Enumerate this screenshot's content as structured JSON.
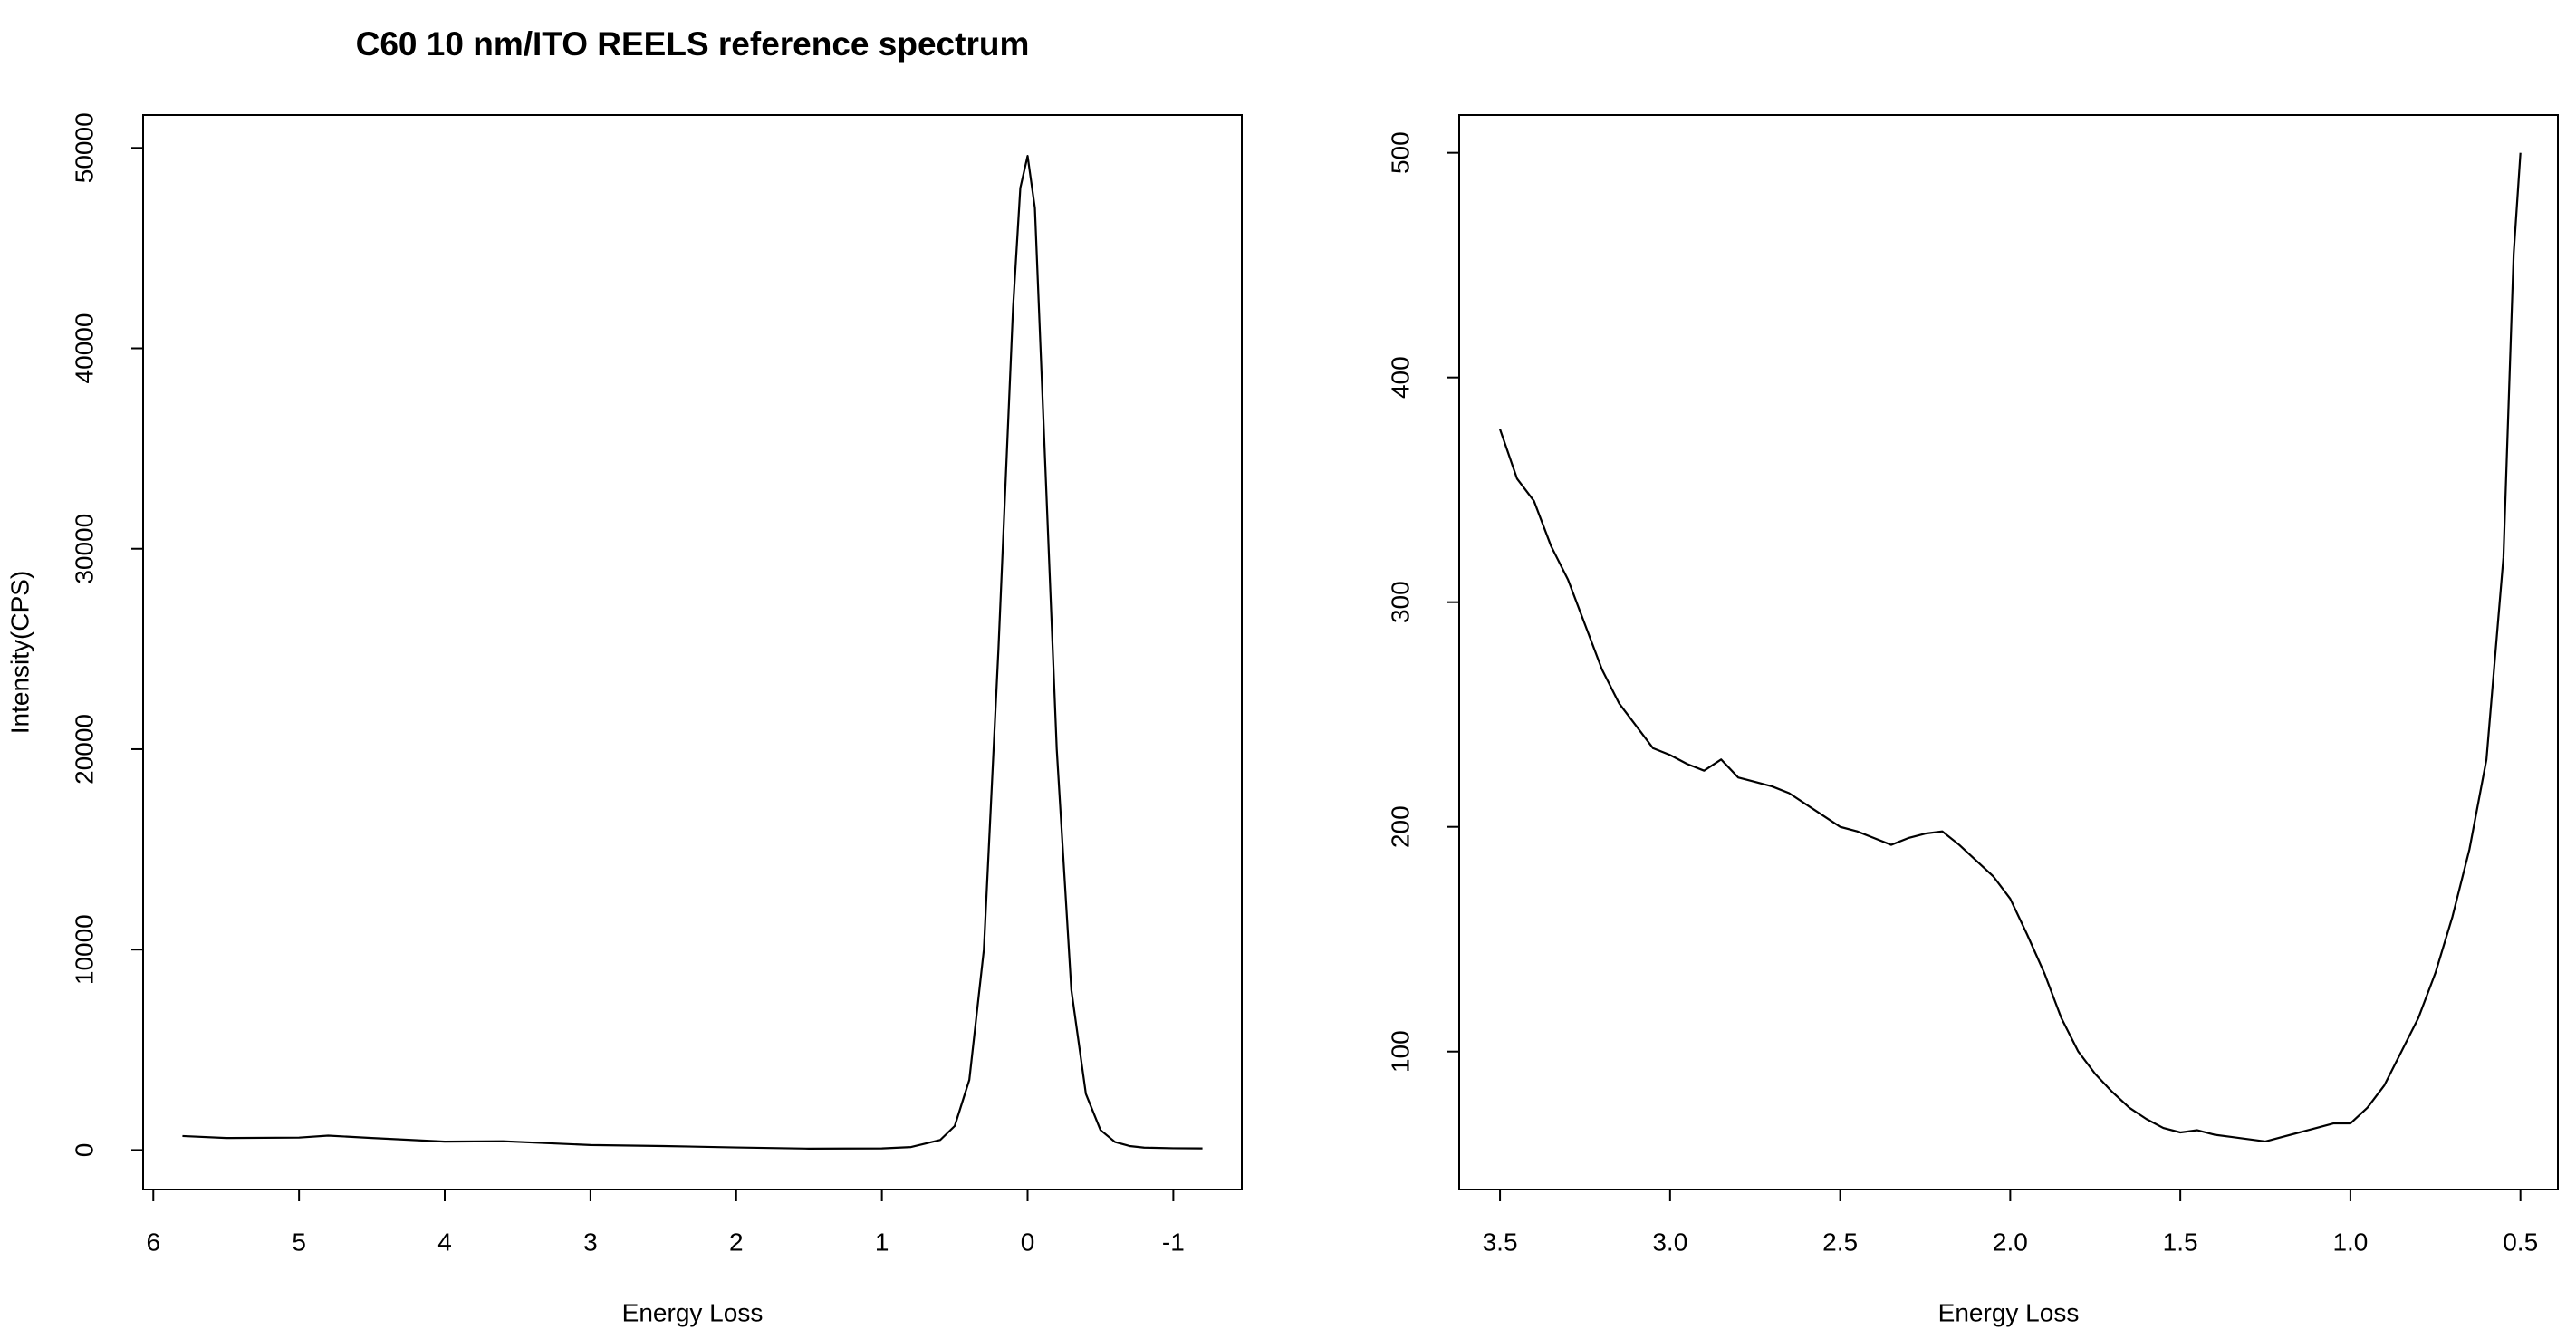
{
  "chart_data": [
    {
      "type": "line",
      "title": "C60 10 nm/ITO REELS reference spectrum",
      "x_label": "Energy Loss",
      "y_label": "Intensity(CPS)",
      "color": "#000000",
      "x": [
        5.8,
        5.5,
        5.0,
        4.8,
        4.5,
        4.0,
        3.6,
        3.0,
        2.5,
        2.0,
        1.5,
        1.0,
        0.8,
        0.6,
        0.5,
        0.4,
        0.3,
        0.2,
        0.1,
        0.05,
        0,
        -0.05,
        -0.1,
        -0.2,
        -0.3,
        -0.4,
        -0.5,
        -0.6,
        -0.7,
        -0.8,
        -1.0,
        -1.2
      ],
      "values": [
        700,
        600,
        620,
        720,
        600,
        420,
        440,
        250,
        200,
        130,
        70,
        80,
        150,
        500,
        1200,
        3500,
        10000,
        25000,
        42000,
        48000,
        49600,
        47000,
        38000,
        20000,
        8000,
        2800,
        1000,
        400,
        200,
        120,
        90,
        80
      ],
      "xlim": [
        6.07,
        -1.47
      ],
      "xticks": [
        6,
        5,
        4,
        3,
        2,
        1,
        0,
        -1
      ],
      "ylim": [
        -1970,
        51640
      ],
      "yticks": [
        0,
        10000,
        20000,
        30000,
        40000,
        50000
      ]
    },
    {
      "type": "line",
      "x_label": "Energy Loss",
      "color": "#000000",
      "x": [
        3.5,
        3.45,
        3.4,
        3.35,
        3.3,
        3.25,
        3.2,
        3.15,
        3.1,
        3.05,
        3.0,
        2.95,
        2.9,
        2.85,
        2.8,
        2.75,
        2.7,
        2.65,
        2.6,
        2.55,
        2.5,
        2.45,
        2.4,
        2.35,
        2.3,
        2.25,
        2.2,
        2.15,
        2.1,
        2.05,
        2.0,
        1.95,
        1.9,
        1.85,
        1.8,
        1.75,
        1.7,
        1.65,
        1.6,
        1.55,
        1.5,
        1.45,
        1.4,
        1.35,
        1.3,
        1.25,
        1.2,
        1.15,
        1.1,
        1.05,
        1.0,
        0.95,
        0.9,
        0.85,
        0.8,
        0.75,
        0.7,
        0.65,
        0.6,
        0.55,
        0.52,
        0.5
      ],
      "values": [
        377,
        355,
        345,
        325,
        310,
        290,
        270,
        255,
        245,
        235,
        232,
        228,
        225,
        230,
        222,
        220,
        218,
        215,
        210,
        205,
        200,
        198,
        195,
        192,
        195,
        197,
        198,
        192,
        185,
        178,
        168,
        152,
        135,
        115,
        100,
        90,
        82,
        75,
        70,
        66,
        64,
        65,
        63,
        62,
        61,
        60,
        62,
        64,
        66,
        68,
        68,
        75,
        85,
        100,
        115,
        135,
        160,
        190,
        230,
        320,
        455,
        500
      ],
      "xlim": [
        3.62,
        0.39
      ],
      "xticks": [
        3.5,
        {
          "value": 3,
          "label": "3.0"
        },
        2.5,
        {
          "value": 2,
          "label": "2.0"
        },
        1.5,
        {
          "value": 1,
          "label": "1.0"
        },
        0.5
      ],
      "ylim": [
        38.6,
        516.8
      ],
      "yticks": [
        100,
        200,
        300,
        400,
        500
      ]
    }
  ]
}
